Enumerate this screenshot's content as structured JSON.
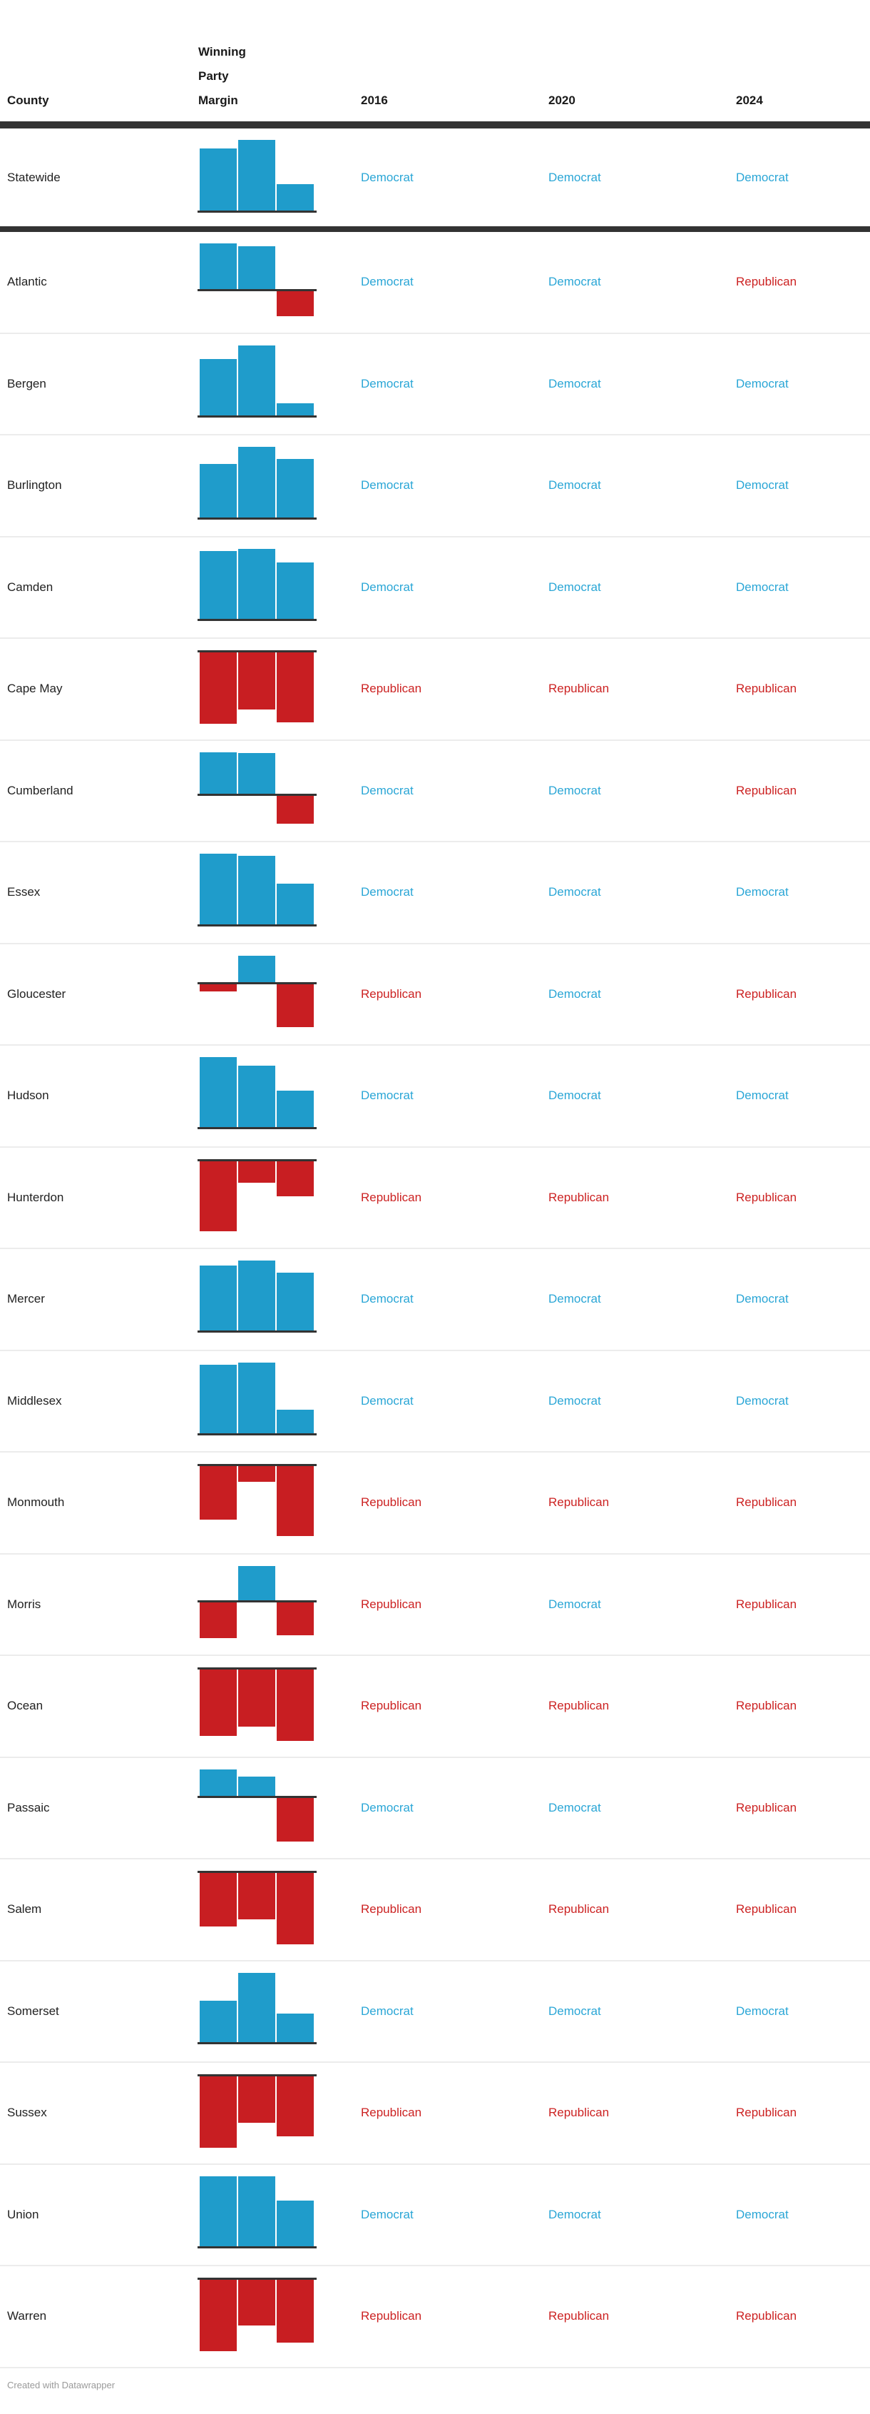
{
  "header": {
    "county_label": "County",
    "margin_label": "Winning Party Margin",
    "year_labels": [
      "2016",
      "2020",
      "2024"
    ]
  },
  "party_names": {
    "D": "Democrat",
    "R": "Republican"
  },
  "colors": {
    "democrat_bar": "#1f9ccb",
    "republican_bar": "#c81e22",
    "democrat_text": "#2aa6d6",
    "republican_text": "#cc2222",
    "header_text": "#1a1a1a",
    "county_text": "#222222",
    "rule_dark": "#333333",
    "row_divider": "#ececec",
    "footer_text": "#9a9a9a"
  },
  "footer": {
    "credit": "Created with Datawrapper"
  },
  "chart_data": {
    "type": "table",
    "columns": [
      "County",
      "Winning Party Margin",
      "2016",
      "2020",
      "2024"
    ],
    "mini_chart": {
      "type": "column",
      "x": [
        "2016",
        "2020",
        "2024"
      ],
      "baseline": 0,
      "units": "winning-party margin; values are bar lengths in px read from the image, positive = Democrat (blue, above baseline), negative = Republican (red, below baseline); each row is scaled independently so its full range spans ~100px",
      "grid": false,
      "legend": "none"
    },
    "rows": [
      {
        "county": "Statewide",
        "bars": [
          87,
          99,
          37
        ],
        "winners": [
          "D",
          "D",
          "D"
        ],
        "separator_after": "thick"
      },
      {
        "county": "Atlantic",
        "bars": [
          64,
          60,
          -35
        ],
        "winners": [
          "D",
          "D",
          "R"
        ]
      },
      {
        "county": "Bergen",
        "bars": [
          79,
          98,
          17
        ],
        "winners": [
          "D",
          "D",
          "D"
        ]
      },
      {
        "county": "Burlington",
        "bars": [
          75,
          99,
          82
        ],
        "winners": [
          "D",
          "D",
          "D"
        ]
      },
      {
        "county": "Camden",
        "bars": [
          95,
          98,
          79
        ],
        "winners": [
          "D",
          "D",
          "D"
        ]
      },
      {
        "county": "Cape May",
        "bars": [
          -100,
          -80,
          -98
        ],
        "winners": [
          "R",
          "R",
          "R"
        ]
      },
      {
        "county": "Cumberland",
        "bars": [
          58,
          57,
          -39
        ],
        "winners": [
          "D",
          "D",
          "R"
        ]
      },
      {
        "county": "Essex",
        "bars": [
          99,
          96,
          57
        ],
        "winners": [
          "D",
          "D",
          "D"
        ]
      },
      {
        "county": "Gloucester",
        "bars": [
          -10,
          37,
          -60
        ],
        "winners": [
          "R",
          "D",
          "R"
        ]
      },
      {
        "county": "Hudson",
        "bars": [
          98,
          86,
          51
        ],
        "winners": [
          "D",
          "D",
          "D"
        ]
      },
      {
        "county": "Hunterdon",
        "bars": [
          -98,
          -30,
          -49
        ],
        "winners": [
          "R",
          "R",
          "R"
        ]
      },
      {
        "county": "Mercer",
        "bars": [
          91,
          98,
          81
        ],
        "winners": [
          "D",
          "D",
          "D"
        ]
      },
      {
        "county": "Middlesex",
        "bars": [
          96,
          99,
          33
        ],
        "winners": [
          "D",
          "D",
          "D"
        ]
      },
      {
        "county": "Monmouth",
        "bars": [
          -75,
          -22,
          -98
        ],
        "winners": [
          "R",
          "R",
          "R"
        ]
      },
      {
        "county": "Morris",
        "bars": [
          -50,
          48,
          -46
        ],
        "winners": [
          "R",
          "D",
          "R"
        ]
      },
      {
        "county": "Ocean",
        "bars": [
          -93,
          -80,
          -100
        ],
        "winners": [
          "R",
          "R",
          "R"
        ]
      },
      {
        "county": "Passaic",
        "bars": [
          37,
          27,
          -61
        ],
        "winners": [
          "D",
          "D",
          "R"
        ]
      },
      {
        "county": "Salem",
        "bars": [
          -75,
          -65,
          -100
        ],
        "winners": [
          "R",
          "R",
          "R"
        ]
      },
      {
        "county": "Somerset",
        "bars": [
          58,
          97,
          40
        ],
        "winners": [
          "D",
          "D",
          "D"
        ]
      },
      {
        "county": "Sussex",
        "bars": [
          -100,
          -65,
          -84
        ],
        "winners": [
          "R",
          "R",
          "R"
        ]
      },
      {
        "county": "Union",
        "bars": [
          98,
          98,
          64
        ],
        "winners": [
          "D",
          "D",
          "D"
        ]
      },
      {
        "county": "Warren",
        "bars": [
          -100,
          -64,
          -88
        ],
        "winners": [
          "R",
          "R",
          "R"
        ]
      }
    ]
  }
}
